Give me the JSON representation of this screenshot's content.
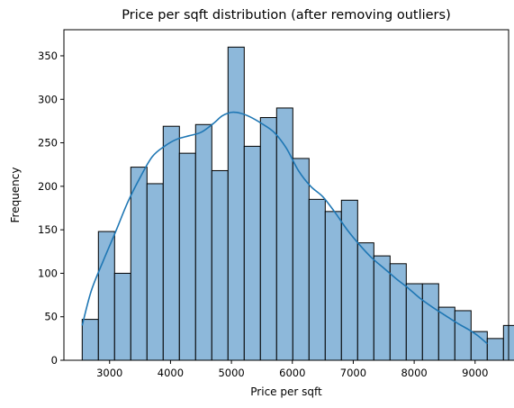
{
  "chart_data": {
    "type": "histogram",
    "title": "Price per sqft distribution (after removing outliers)",
    "xlabel": "Price per sqft",
    "ylabel": "Frequency",
    "xlim": [
      2250,
      9550
    ],
    "ylim": [
      0,
      380
    ],
    "xticks": [
      3000,
      4000,
      5000,
      6000,
      7000,
      8000,
      9000
    ],
    "yticks": [
      0,
      50,
      100,
      150,
      200,
      250,
      300,
      350
    ],
    "bin_start": 2550,
    "bin_width": 266,
    "counts": [
      47,
      148,
      100,
      222,
      203,
      269,
      238,
      271,
      218,
      360,
      246,
      279,
      290,
      232,
      185,
      171,
      184,
      135,
      120,
      111,
      88,
      88,
      61,
      57,
      33,
      25,
      40
    ],
    "bar_color": "#8db8da",
    "kde_color": "#1f77b4",
    "kde": {
      "x": [
        2550,
        2700,
        2900,
        3100,
        3300,
        3500,
        3700,
        3900,
        4100,
        4300,
        4500,
        4700,
        4850,
        5000,
        5150,
        5300,
        5500,
        5700,
        5900,
        6100,
        6300,
        6500,
        6700,
        6900,
        7100,
        7300,
        7500,
        7700,
        7900,
        8100,
        8300,
        8500,
        8700,
        8900,
        9050,
        9200
      ],
      "y": [
        40,
        80,
        115,
        148,
        182,
        210,
        234,
        246,
        254,
        258,
        262,
        272,
        281,
        285,
        284,
        280,
        272,
        262,
        244,
        218,
        200,
        188,
        170,
        150,
        133,
        118,
        106,
        94,
        83,
        71,
        61,
        52,
        43,
        35,
        28,
        19
      ]
    }
  }
}
